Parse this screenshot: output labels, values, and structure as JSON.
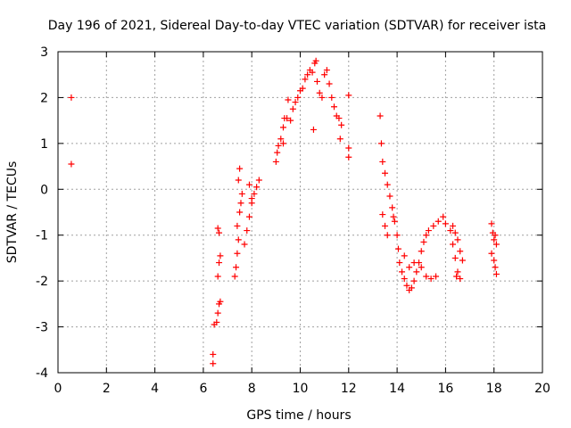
{
  "chart_data": {
    "type": "scatter",
    "title": "Day 196 of 2021, Sidereal Day-to-day VTEC variation (SDTVAR) for receiver ista",
    "xlabel": "GPS time / hours",
    "ylabel": "SDTVAR / TECUs",
    "xlim": [
      0,
      20
    ],
    "ylim": [
      -4,
      3
    ],
    "xticks": [
      0,
      2,
      4,
      6,
      8,
      10,
      12,
      14,
      16,
      18,
      20
    ],
    "yticks": [
      -4,
      -3,
      -2,
      -1,
      0,
      1,
      2,
      3
    ],
    "grid": true,
    "marker": "+",
    "color": "#ff0000",
    "series": [
      {
        "name": "SDTVAR",
        "points": [
          [
            0.55,
            2.0
          ],
          [
            0.55,
            0.55
          ],
          [
            6.4,
            -3.6
          ],
          [
            6.4,
            -3.8
          ],
          [
            6.45,
            -2.95
          ],
          [
            6.55,
            -2.9
          ],
          [
            6.6,
            -2.7
          ],
          [
            6.65,
            -2.5
          ],
          [
            6.7,
            -2.45
          ],
          [
            6.6,
            -1.9
          ],
          [
            6.65,
            -1.6
          ],
          [
            6.7,
            -1.45
          ],
          [
            6.6,
            -0.85
          ],
          [
            6.65,
            -0.95
          ],
          [
            7.3,
            -1.9
          ],
          [
            7.35,
            -1.7
          ],
          [
            7.4,
            -1.4
          ],
          [
            7.45,
            -1.1
          ],
          [
            7.4,
            -0.8
          ],
          [
            7.5,
            -0.5
          ],
          [
            7.55,
            -0.3
          ],
          [
            7.5,
            0.45
          ],
          [
            7.45,
            0.2
          ],
          [
            7.6,
            -0.1
          ],
          [
            7.7,
            -1.2
          ],
          [
            7.8,
            -0.9
          ],
          [
            7.9,
            -0.6
          ],
          [
            8.0,
            -0.3
          ],
          [
            8.1,
            -0.1
          ],
          [
            8.2,
            0.05
          ],
          [
            8.3,
            0.2
          ],
          [
            7.9,
            0.1
          ],
          [
            8.0,
            -0.2
          ],
          [
            9.0,
            0.6
          ],
          [
            9.05,
            0.8
          ],
          [
            9.1,
            0.95
          ],
          [
            9.2,
            1.1
          ],
          [
            9.3,
            1.35
          ],
          [
            9.35,
            1.55
          ],
          [
            9.45,
            1.55
          ],
          [
            9.3,
            1.0
          ],
          [
            9.5,
            1.95
          ],
          [
            9.6,
            1.5
          ],
          [
            9.7,
            1.75
          ],
          [
            9.8,
            1.9
          ],
          [
            9.9,
            2.0
          ],
          [
            10.0,
            2.15
          ],
          [
            10.1,
            2.2
          ],
          [
            10.2,
            2.4
          ],
          [
            10.3,
            2.5
          ],
          [
            10.4,
            2.6
          ],
          [
            10.5,
            2.55
          ],
          [
            10.6,
            2.75
          ],
          [
            10.65,
            2.8
          ],
          [
            10.55,
            1.3
          ],
          [
            10.7,
            2.35
          ],
          [
            10.8,
            2.1
          ],
          [
            10.9,
            2.0
          ],
          [
            11.0,
            2.5
          ],
          [
            11.1,
            2.6
          ],
          [
            11.2,
            2.3
          ],
          [
            11.3,
            2.0
          ],
          [
            11.4,
            1.8
          ],
          [
            11.5,
            1.6
          ],
          [
            11.6,
            1.55
          ],
          [
            11.7,
            1.4
          ],
          [
            11.65,
            1.1
          ],
          [
            12.0,
            2.05
          ],
          [
            12.0,
            0.9
          ],
          [
            12.0,
            0.7
          ],
          [
            13.3,
            1.6
          ],
          [
            13.35,
            1.0
          ],
          [
            13.4,
            0.6
          ],
          [
            13.5,
            0.35
          ],
          [
            13.6,
            0.1
          ],
          [
            13.7,
            -0.15
          ],
          [
            13.8,
            -0.4
          ],
          [
            13.85,
            -0.6
          ],
          [
            13.4,
            -0.55
          ],
          [
            13.5,
            -0.8
          ],
          [
            13.6,
            -1.0
          ],
          [
            13.9,
            -0.7
          ],
          [
            14.0,
            -1.0
          ],
          [
            14.05,
            -1.3
          ],
          [
            14.1,
            -1.6
          ],
          [
            14.2,
            -1.8
          ],
          [
            14.3,
            -1.95
          ],
          [
            14.4,
            -2.1
          ],
          [
            14.5,
            -2.2
          ],
          [
            14.6,
            -2.15
          ],
          [
            14.7,
            -2.0
          ],
          [
            14.8,
            -1.8
          ],
          [
            14.9,
            -1.6
          ],
          [
            15.0,
            -1.35
          ],
          [
            15.1,
            -1.15
          ],
          [
            15.2,
            -1.0
          ],
          [
            14.3,
            -1.45
          ],
          [
            14.5,
            -1.7
          ],
          [
            14.7,
            -1.6
          ],
          [
            15.0,
            -1.7
          ],
          [
            15.2,
            -1.9
          ],
          [
            15.4,
            -1.95
          ],
          [
            15.6,
            -1.9
          ],
          [
            15.3,
            -0.9
          ],
          [
            15.5,
            -0.8
          ],
          [
            15.7,
            -0.7
          ],
          [
            15.9,
            -0.6
          ],
          [
            16.0,
            -0.75
          ],
          [
            16.2,
            -0.9
          ],
          [
            16.3,
            -1.2
          ],
          [
            16.4,
            -1.5
          ],
          [
            16.5,
            -1.8
          ],
          [
            16.6,
            -1.95
          ],
          [
            16.3,
            -0.8
          ],
          [
            16.4,
            -0.95
          ],
          [
            16.5,
            -1.1
          ],
          [
            16.6,
            -1.35
          ],
          [
            16.7,
            -1.55
          ],
          [
            16.45,
            -1.9
          ],
          [
            17.9,
            -0.75
          ],
          [
            17.95,
            -0.95
          ],
          [
            18.0,
            -1.1
          ],
          [
            18.05,
            -1.0
          ],
          [
            18.1,
            -1.2
          ],
          [
            17.9,
            -1.4
          ],
          [
            18.0,
            -1.55
          ],
          [
            18.05,
            -1.7
          ],
          [
            18.1,
            -1.85
          ]
        ]
      }
    ]
  }
}
